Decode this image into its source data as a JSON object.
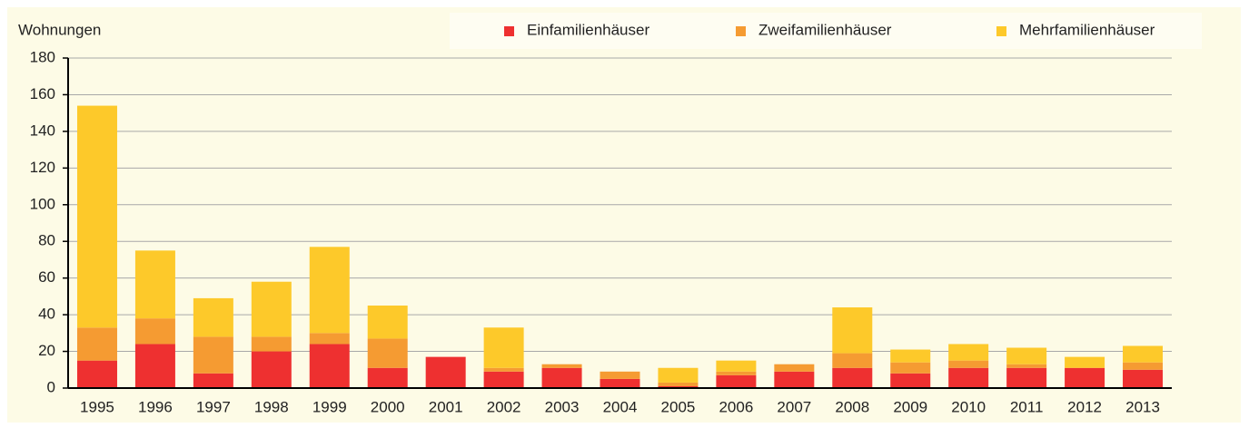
{
  "chart_data": {
    "type": "stacked_bar",
    "y_label": "Wohnungen",
    "categories": [
      "1995",
      "1996",
      "1997",
      "1998",
      "1999",
      "2000",
      "2001",
      "2002",
      "2003",
      "2004",
      "2005",
      "2006",
      "2007",
      "2008",
      "2009",
      "2010",
      "2011",
      "2012",
      "2013"
    ],
    "series": [
      {
        "name": "Einfamilienhäuser",
        "color": "#ee3030",
        "values": [
          15,
          24,
          8,
          20,
          24,
          11,
          17,
          9,
          11,
          5,
          1,
          7,
          9,
          11,
          8,
          11,
          11,
          11,
          10
        ]
      },
      {
        "name": "Zweifamilienhäuser",
        "color": "#f59b32",
        "values": [
          18,
          14,
          20,
          8,
          6,
          16,
          0,
          2,
          2,
          4,
          2,
          2,
          4,
          8,
          6,
          4,
          2,
          0,
          4
        ]
      },
      {
        "name": "Mehrfamilienhäuser",
        "color": "#fdc92a",
        "values": [
          121,
          37,
          21,
          30,
          47,
          18,
          0,
          22,
          0,
          0,
          8,
          6,
          0,
          25,
          7,
          9,
          9,
          6,
          9
        ]
      }
    ],
    "ylim": [
      0,
      180
    ],
    "yticks": [
      0,
      20,
      40,
      60,
      80,
      100,
      120,
      140,
      160,
      180
    ],
    "grid": true
  }
}
